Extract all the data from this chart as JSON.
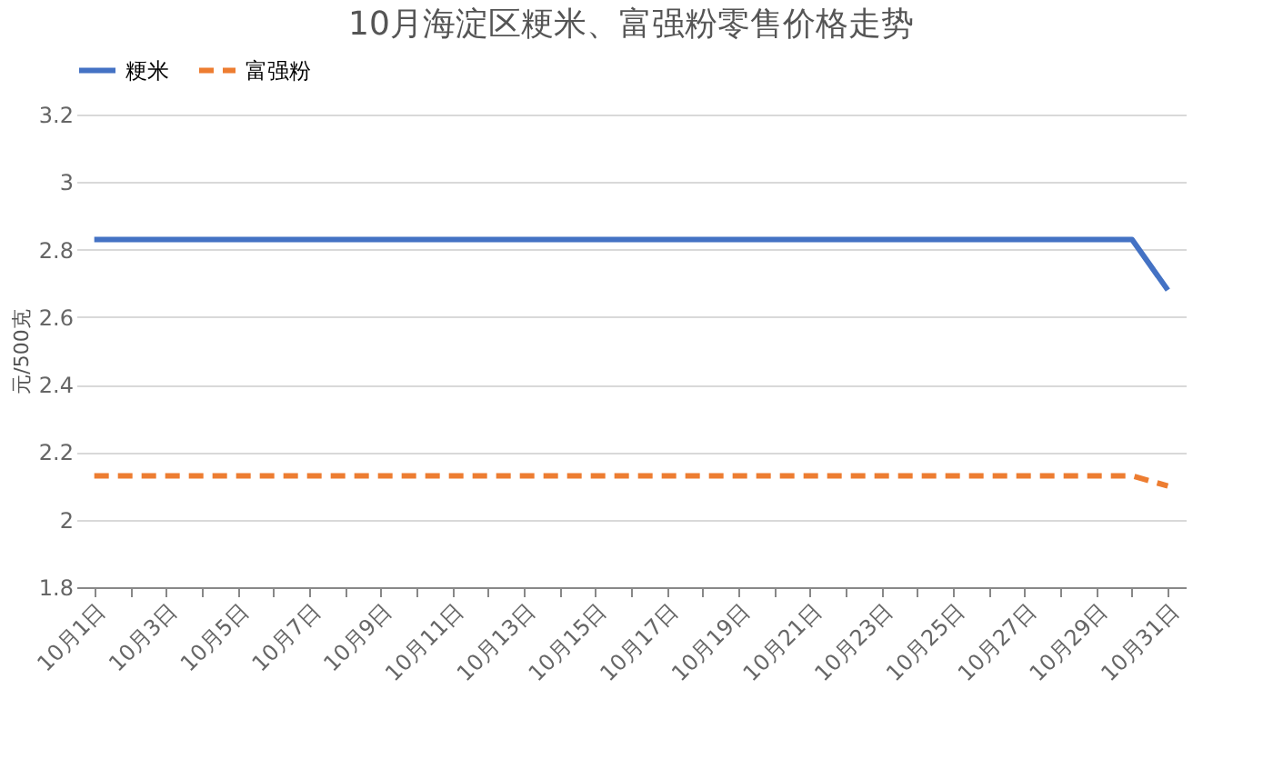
{
  "chart_data": {
    "type": "line",
    "title": "10月海淀区粳米、富强粉零售价格走势",
    "ylabel": "元/500克",
    "categories": [
      "10月1日",
      null,
      "10月3日",
      null,
      "10月5日",
      null,
      "10月7日",
      null,
      "10月9日",
      null,
      "10月11日",
      null,
      "10月13日",
      null,
      "10月15日",
      null,
      "10月17日",
      null,
      "10月19日",
      null,
      "10月21日",
      null,
      "10月23日",
      null,
      "10月25日",
      null,
      "10月27日",
      null,
      "10月29日",
      null,
      "10月31日"
    ],
    "series": [
      {
        "name": "粳米",
        "color": "#4472c4",
        "line_style": "solid",
        "values": [
          2.83,
          2.83,
          2.83,
          2.83,
          2.83,
          2.83,
          2.83,
          2.83,
          2.83,
          2.83,
          2.83,
          2.83,
          2.83,
          2.83,
          2.83,
          2.83,
          2.83,
          2.83,
          2.83,
          2.83,
          2.83,
          2.83,
          2.83,
          2.83,
          2.83,
          2.83,
          2.83,
          2.83,
          2.83,
          2.83,
          2.68
        ]
      },
      {
        "name": "富强粉",
        "color": "#ed7d31",
        "line_style": "dashed",
        "values": [
          2.13,
          2.13,
          2.13,
          2.13,
          2.13,
          2.13,
          2.13,
          2.13,
          2.13,
          2.13,
          2.13,
          2.13,
          2.13,
          2.13,
          2.13,
          2.13,
          2.13,
          2.13,
          2.13,
          2.13,
          2.13,
          2.13,
          2.13,
          2.13,
          2.13,
          2.13,
          2.13,
          2.13,
          2.13,
          2.13,
          2.1
        ]
      }
    ],
    "ylim": [
      1.8,
      3.2
    ],
    "yticks": [
      1.8,
      2,
      2.2,
      2.4,
      2.6,
      2.8,
      3,
      3.2
    ],
    "grid": "y",
    "legend": "top",
    "marker": "none"
  }
}
